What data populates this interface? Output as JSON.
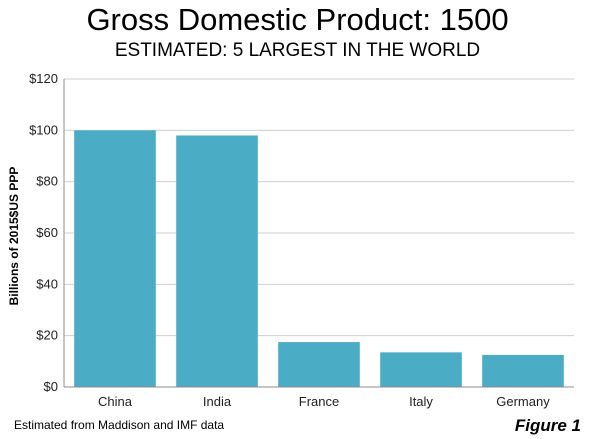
{
  "chart_data": {
    "type": "bar",
    "title": "Gross Domestic Product: 1500",
    "subtitle": "ESTIMATED: 5 LARGEST IN THE WORLD",
    "xlabel": "",
    "ylabel": "Billions of 2015$US  PPP",
    "categories": [
      "China",
      "India",
      "France",
      "Italy",
      "Germany"
    ],
    "values": [
      100,
      98,
      17.5,
      13.5,
      12.5
    ],
    "ylim": [
      0,
      120
    ],
    "yticks": [
      0,
      20,
      40,
      60,
      80,
      100,
      120
    ],
    "ytick_labels": [
      "$0",
      "$20",
      "$40",
      "$60",
      "$80",
      "$100",
      "$120"
    ],
    "grid": true,
    "legend": "none",
    "bar_color": "#4bacc6",
    "note": "Estimated from Maddison and IMF data",
    "figure_label": "Figure 1"
  }
}
